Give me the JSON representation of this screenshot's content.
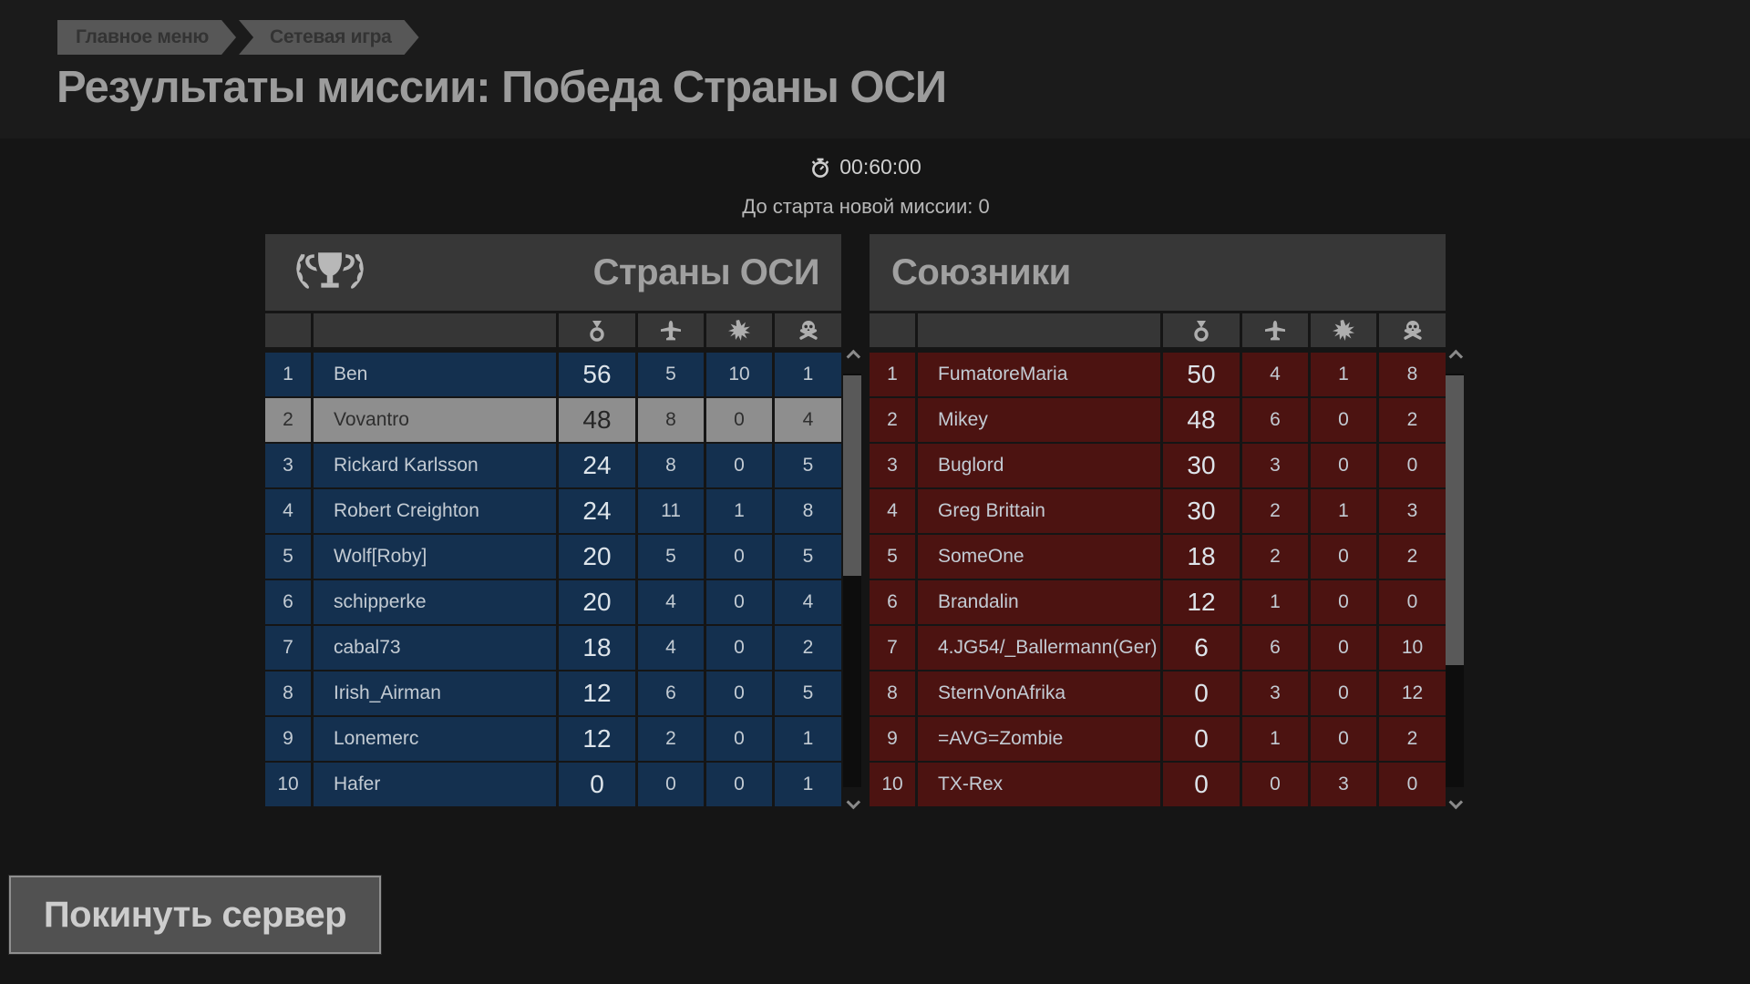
{
  "breadcrumb": {
    "items": [
      {
        "label": "Главное меню"
      },
      {
        "label": "Сетевая игра"
      }
    ]
  },
  "page": {
    "title": "Результаты миссии: Победа Страны ОСИ"
  },
  "status": {
    "timer": "00:60:00",
    "next_mission_text": "До старта новой миссии: 0"
  },
  "columns": {
    "icons": [
      "score-medal-icon",
      "air-kills-plane-icon",
      "ground-kills-explosion-icon",
      "deaths-skull-icon"
    ]
  },
  "tables": {
    "axis": {
      "title": "Страны ОСИ",
      "winner": true,
      "rows": [
        {
          "rank": 1,
          "name": "Ben",
          "score": 56,
          "air": 5,
          "ground": 10,
          "deaths": 1
        },
        {
          "rank": 2,
          "name": "Vovantro",
          "score": 48,
          "air": 8,
          "ground": 0,
          "deaths": 4,
          "highlighted": true
        },
        {
          "rank": 3,
          "name": "Rickard Karlsson",
          "score": 24,
          "air": 8,
          "ground": 0,
          "deaths": 5
        },
        {
          "rank": 4,
          "name": "Robert Creighton",
          "score": 24,
          "air": 11,
          "ground": 1,
          "deaths": 8
        },
        {
          "rank": 5,
          "name": "Wolf[Roby]",
          "score": 20,
          "air": 5,
          "ground": 0,
          "deaths": 5
        },
        {
          "rank": 6,
          "name": "schipperke",
          "score": 20,
          "air": 4,
          "ground": 0,
          "deaths": 4
        },
        {
          "rank": 7,
          "name": "cabal73",
          "score": 18,
          "air": 4,
          "ground": 0,
          "deaths": 2
        },
        {
          "rank": 8,
          "name": "Irish_Airman",
          "score": 12,
          "air": 6,
          "ground": 0,
          "deaths": 5
        },
        {
          "rank": 9,
          "name": "Lonemerc",
          "score": 12,
          "air": 2,
          "ground": 0,
          "deaths": 1
        },
        {
          "rank": 10,
          "name": "Hafer",
          "score": 0,
          "air": 0,
          "ground": 0,
          "deaths": 1
        }
      ]
    },
    "allies": {
      "title": "Союзники",
      "winner": false,
      "rows": [
        {
          "rank": 1,
          "name": "FumatoreMaria",
          "score": 50,
          "air": 4,
          "ground": 1,
          "deaths": 8
        },
        {
          "rank": 2,
          "name": "Mikey",
          "score": 48,
          "air": 6,
          "ground": 0,
          "deaths": 2
        },
        {
          "rank": 3,
          "name": "Buglord",
          "score": 30,
          "air": 3,
          "ground": 0,
          "deaths": 0
        },
        {
          "rank": 4,
          "name": "Greg Brittain",
          "score": 30,
          "air": 2,
          "ground": 1,
          "deaths": 3
        },
        {
          "rank": 5,
          "name": "SomeOne",
          "score": 18,
          "air": 2,
          "ground": 0,
          "deaths": 2
        },
        {
          "rank": 6,
          "name": "Brandalin",
          "score": 12,
          "air": 1,
          "ground": 0,
          "deaths": 0
        },
        {
          "rank": 7,
          "name": "4.JG54/_Ballermann(Ger)",
          "score": 6,
          "air": 6,
          "ground": 0,
          "deaths": 10
        },
        {
          "rank": 8,
          "name": "SternVonAfrika",
          "score": 0,
          "air": 3,
          "ground": 0,
          "deaths": 12
        },
        {
          "rank": 9,
          "name": "=AVG=Zombie",
          "score": 0,
          "air": 1,
          "ground": 0,
          "deaths": 2
        },
        {
          "rank": 10,
          "name": "TX-Rex",
          "score": 0,
          "air": 0,
          "ground": 3,
          "deaths": 0
        }
      ]
    }
  },
  "buttons": {
    "leave_server": "Покинуть сервер"
  },
  "colors": {
    "axis_row": "#14304f",
    "allies_row": "#4c1311",
    "highlight_row": "#8e8e8e",
    "panel_header": "#373737",
    "background": "#151515"
  }
}
